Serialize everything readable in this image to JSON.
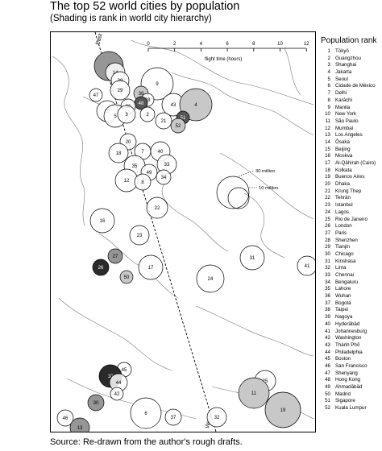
{
  "title": "The top 52 world cities by population",
  "subtitle": "(Shading is rank in world city hierarchy)",
  "source": "Source: Re-drawn from the author's rough drafts.",
  "scale": {
    "ticks": [
      "0",
      "2",
      "4",
      "6",
      "8",
      "10",
      "12"
    ],
    "label": "flight time (hours)"
  },
  "axis_labels": {
    "east": "East",
    "west": "West"
  },
  "size_key": {
    "large": "30 million",
    "small": "10 million"
  },
  "legend": {
    "title": "Population rank",
    "entries": [
      {
        "rank": "1",
        "city": "Tōkyō"
      },
      {
        "rank": "2",
        "city": "Guangzhou"
      },
      {
        "rank": "3",
        "city": "Shanghai"
      },
      {
        "rank": "4",
        "city": "Jakarta"
      },
      {
        "rank": "5",
        "city": "Seoul"
      },
      {
        "rank": "6",
        "city": "Cidade de México"
      },
      {
        "rank": "7",
        "city": "Delhi"
      },
      {
        "rank": "8",
        "city": "Karāchi"
      },
      {
        "rank": "9",
        "city": "Manila"
      },
      {
        "rank": "10",
        "city": "New York"
      },
      {
        "rank": "11",
        "city": "São Paulo"
      },
      {
        "rank": "12",
        "city": "Mumbai"
      },
      {
        "rank": "13",
        "city": "Los Angeles"
      },
      {
        "rank": "14",
        "city": "Ōsaka"
      },
      {
        "rank": "15",
        "city": "Beijing"
      },
      {
        "rank": "16",
        "city": "Moskva"
      },
      {
        "rank": "17",
        "city": "Al-Qāhirah (Cairo)"
      },
      {
        "rank": "18",
        "city": "Kolkata"
      },
      {
        "rank": "19",
        "city": "Buenos Aires"
      },
      {
        "rank": "20",
        "city": "Dhaka"
      },
      {
        "rank": "21",
        "city": "Krung Thep"
      },
      {
        "rank": "22",
        "city": "Tehrān"
      },
      {
        "rank": "23",
        "city": "Istanbul"
      },
      {
        "rank": "24",
        "city": "Lagos"
      },
      {
        "rank": "25",
        "city": "Rio de Janeiro"
      },
      {
        "rank": "26",
        "city": "London"
      },
      {
        "rank": "27",
        "city": "Paris"
      },
      {
        "rank": "28",
        "city": "Shenzhen"
      },
      {
        "rank": "29",
        "city": "Tianjin"
      },
      {
        "rank": "30",
        "city": "Chicago"
      },
      {
        "rank": "31",
        "city": "Kinshasa"
      },
      {
        "rank": "32",
        "city": "Lima"
      },
      {
        "rank": "33",
        "city": "Chennai"
      },
      {
        "rank": "34",
        "city": "Bengaluru"
      },
      {
        "rank": "35",
        "city": "Lahore"
      },
      {
        "rank": "36",
        "city": "Wuhan"
      },
      {
        "rank": "37",
        "city": "Bogotá"
      },
      {
        "rank": "38",
        "city": "Taipei"
      },
      {
        "rank": "39",
        "city": "Nagoya"
      },
      {
        "rank": "40",
        "city": "Hyderābād"
      },
      {
        "rank": "41",
        "city": "Johannesburg"
      },
      {
        "rank": "42",
        "city": "Washington"
      },
      {
        "rank": "43",
        "city": "Thành Phố"
      },
      {
        "rank": "44",
        "city": "Philadelphia"
      },
      {
        "rank": "45",
        "city": "Boston"
      },
      {
        "rank": "46",
        "city": "San Francisco"
      },
      {
        "rank": "47",
        "city": "Shenyang"
      },
      {
        "rank": "48",
        "city": "Hong Kong"
      },
      {
        "rank": "49",
        "city": "Ahmadābād"
      },
      {
        "rank": "50",
        "city": "Madrid"
      },
      {
        "rank": "51",
        "city": "Sigapore"
      },
      {
        "rank": "52",
        "city": "Kuala Lumpur"
      }
    ]
  },
  "shading": {
    "white": "#ffffff",
    "light": "#c8c8c8",
    "mid": "#969696",
    "dark": "#555555",
    "darkest": "#2a2a2a"
  },
  "cities": [
    {
      "label": "1",
      "shade": "mid"
    },
    {
      "label": "14",
      "shade": "white"
    },
    {
      "label": "39",
      "shade": "white"
    },
    {
      "label": "9",
      "shade": "white"
    },
    {
      "label": "47",
      "shade": "white"
    },
    {
      "label": "29",
      "shade": "white"
    },
    {
      "label": "38",
      "shade": "light"
    },
    {
      "label": "28",
      "shade": "white"
    },
    {
      "label": "48",
      "shade": "dark"
    },
    {
      "label": "15",
      "shade": "white"
    },
    {
      "label": "36",
      "shade": "white"
    },
    {
      "label": "5",
      "shade": "white"
    },
    {
      "label": "3",
      "shade": "white"
    },
    {
      "label": "2",
      "shade": "white"
    },
    {
      "label": "43",
      "shade": "white"
    },
    {
      "label": "4",
      "shade": "light"
    },
    {
      "label": "21",
      "shade": "white"
    },
    {
      "label": "51",
      "shade": "dark"
    },
    {
      "label": "52",
      "shade": "light"
    },
    {
      "label": "20",
      "shade": "white"
    },
    {
      "label": "18",
      "shade": "white"
    },
    {
      "label": "7",
      "shade": "white"
    },
    {
      "label": "40",
      "shade": "white"
    },
    {
      "label": "35",
      "shade": "white"
    },
    {
      "label": "33",
      "shade": "white"
    },
    {
      "label": "49",
      "shade": "white"
    },
    {
      "label": "12",
      "shade": "white"
    },
    {
      "label": "8",
      "shade": "white"
    },
    {
      "label": "34",
      "shade": "white"
    },
    {
      "label": "22",
      "shade": "white"
    },
    {
      "label": "16",
      "shade": "white"
    },
    {
      "label": "23",
      "shade": "white"
    },
    {
      "label": "27",
      "shade": "mid"
    },
    {
      "label": "26",
      "shade": "darkest"
    },
    {
      "label": "50",
      "shade": "light"
    },
    {
      "label": "17",
      "shade": "white"
    },
    {
      "label": "31",
      "shade": "white"
    },
    {
      "label": "24",
      "shade": "white"
    },
    {
      "label": "41",
      "shade": "white"
    },
    {
      "label": "45",
      "shade": "white"
    },
    {
      "label": "10",
      "shade": "darkest"
    },
    {
      "label": "44",
      "shade": "white"
    },
    {
      "label": "42",
      "shade": "white"
    },
    {
      "label": "30",
      "shade": "mid"
    },
    {
      "label": "6",
      "shade": "white"
    },
    {
      "label": "37",
      "shade": "white"
    },
    {
      "label": "32",
      "shade": "white"
    },
    {
      "label": "46",
      "shade": "white"
    },
    {
      "label": "13",
      "shade": "mid"
    },
    {
      "label": "25",
      "shade": "white"
    },
    {
      "label": "11",
      "shade": "light"
    },
    {
      "label": "19",
      "shade": "light"
    }
  ]
}
